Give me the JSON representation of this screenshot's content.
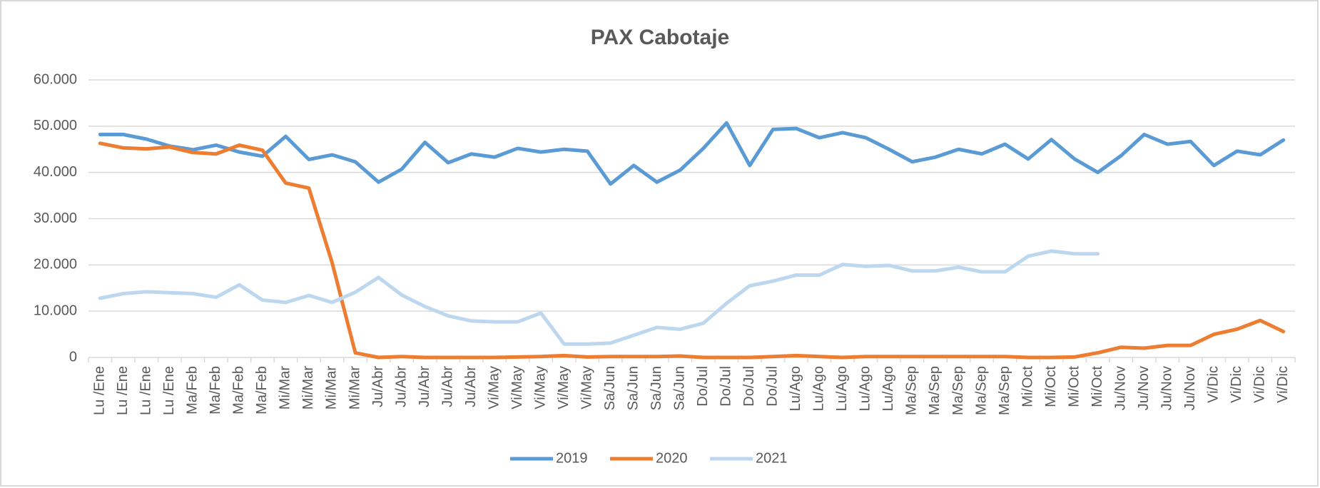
{
  "chart_data": {
    "type": "line",
    "title": "PAX Cabotaje",
    "categories": [
      "Lu /Ene",
      "Lu /Ene",
      "Lu /Ene",
      "Lu /Ene",
      "Ma/Feb",
      "Ma/Feb",
      "Ma/Feb",
      "Ma/Feb",
      "Mi/Mar",
      "Mi/Mar",
      "Mi/Mar",
      "Mi/Mar",
      "Ju/Abr",
      "Ju/Abr",
      "Ju/Abr",
      "Ju/Abr",
      "Ju/Abr",
      "Vi/May",
      "Vi/May",
      "Vi/May",
      "Vi/May",
      "Vi/May",
      "Sa/Jun",
      "Sa/Jun",
      "Sa/Jun",
      "Sa/Jun",
      "Do/Jul",
      "Do/Jul",
      "Do/Jul",
      "Do/Jul",
      "Lu/Ago",
      "Lu/Ago",
      "Lu/Ago",
      "Lu/Ago",
      "Lu/Ago",
      "Ma/Sep",
      "Ma/Sep",
      "Ma/Sep",
      "Ma/Sep",
      "Ma/Sep",
      "Mi/Oct",
      "Mi/Oct",
      "Mi/Oct",
      "Mi/Oct",
      "Ju/Nov",
      "Ju/Nov",
      "Ju/Nov",
      "Ju/Nov",
      "Vi/Dic",
      "Vi/Dic",
      "Vi/Dic",
      "Vi/Dic"
    ],
    "series": [
      {
        "name": "2019",
        "color": "#5b9bd5",
        "values": [
          48200,
          48200,
          47200,
          45700,
          44900,
          45900,
          44400,
          43500,
          47800,
          42800,
          43800,
          42300,
          37900,
          40700,
          46500,
          42100,
          44000,
          43300,
          45200,
          44400,
          45000,
          44600,
          37500,
          41500,
          37900,
          40500,
          45200,
          50700,
          41500,
          49300,
          49500,
          47500,
          48600,
          47500,
          45000,
          42300,
          43300,
          45000,
          44000,
          46100,
          42900,
          47100,
          42900,
          40000,
          43600,
          48200,
          46100,
          46700,
          41500,
          44600,
          43800,
          47000
        ]
      },
      {
        "name": "2020",
        "color": "#ed7d31",
        "values": [
          46300,
          45300,
          45100,
          45500,
          44300,
          44000,
          45900,
          44800,
          37700,
          36600,
          20500,
          1000,
          0,
          200,
          0,
          0,
          0,
          0,
          100,
          200,
          400,
          100,
          200,
          200,
          200,
          300,
          0,
          0,
          0,
          200,
          400,
          200,
          0,
          200,
          200,
          200,
          200,
          200,
          200,
          200,
          0,
          0,
          100,
          1000,
          2200,
          2000,
          2600,
          2600,
          5000,
          6100,
          8000,
          5600
        ]
      },
      {
        "name": "2021",
        "color": "#bdd7ee",
        "values": [
          12800,
          13800,
          14200,
          14000,
          13800,
          13000,
          15700,
          12400,
          11900,
          13400,
          11900,
          14100,
          17300,
          13500,
          11000,
          9000,
          7900,
          7700,
          7700,
          9600,
          2900,
          2900,
          3100,
          4800,
          6500,
          6100,
          7400,
          11700,
          15500,
          16500,
          17800,
          17800,
          20100,
          19700,
          19900,
          18700,
          18700,
          19500,
          18500,
          18500,
          21900,
          23000,
          22400,
          22400,
          null,
          null,
          null,
          null,
          null,
          null,
          null,
          null
        ]
      }
    ],
    "ylim": [
      0,
      60000
    ],
    "yticks": [
      0,
      {
        "value": 10000,
        "label": "10.000"
      },
      {
        "value": 20000,
        "label": "20.000"
      },
      {
        "value": 30000,
        "label": "30.000"
      },
      {
        "value": 40000,
        "label": "40.000"
      },
      {
        "value": 50000,
        "label": "50.000"
      },
      {
        "value": 60000,
        "label": "60.000"
      }
    ],
    "grid": true,
    "legend": "bottom"
  }
}
